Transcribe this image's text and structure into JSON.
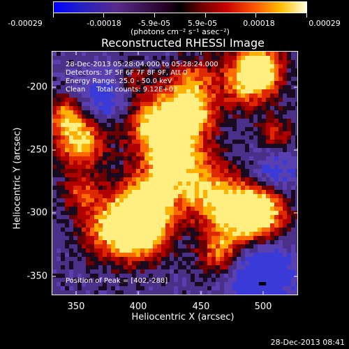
{
  "colorbar": {
    "ticks": [
      "-0.00029",
      "-0.00018",
      "-5.9e-05",
      "5.9e-05",
      "0.00018",
      "0.00029"
    ],
    "units": "(photons cm⁻² s⁻¹ asec⁻²)"
  },
  "title": "Reconstructed RHESSI Image",
  "info": {
    "time": "28-Dec-2013 05:28:04.000 to 05:28:24.000",
    "detectors": "Detectors: 3F 5F 6F 7F 8F 9F, Att 0",
    "energy": "Energy Range: 25.0 - 50.0 keV",
    "clean": "Clean     Total counts: 9.12E+03",
    "peak": "Position of Peak = [402,-288]"
  },
  "axes": {
    "xlabel": "Heliocentric X (arcsec)",
    "ylabel": "Heliocentric Y (arcsec)",
    "xticks": [
      "350",
      "400",
      "450",
      "500"
    ],
    "yticks": [
      "-200",
      "-250",
      "-300",
      "-350"
    ]
  },
  "footer_date": "28-Dec-2013 08:41"
}
